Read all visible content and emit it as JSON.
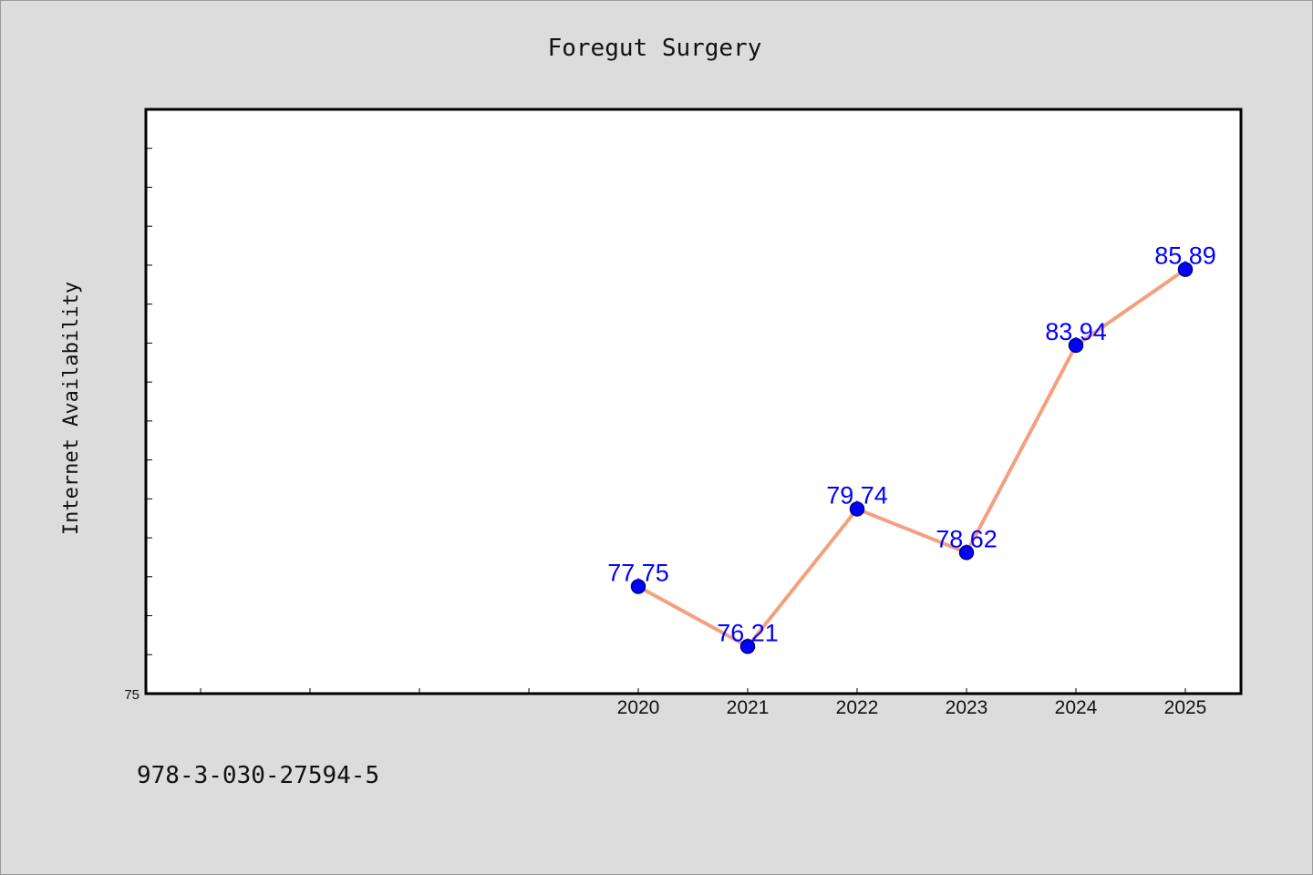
{
  "chart_data": {
    "type": "line",
    "title": "Foregut Surgery",
    "ylabel": "Internet Availability",
    "xlabel": "",
    "x": [
      "2020",
      "2021",
      "2022",
      "2023",
      "2024",
      "2025"
    ],
    "series": [
      {
        "values": [
          77.75,
          76.21,
          79.74,
          78.62,
          83.94,
          85.89
        ]
      }
    ],
    "data_labels": [
      "77.75",
      "76.21",
      "79.74",
      "78.62",
      "83.94",
      "85.89"
    ],
    "y_tick_labels": [
      "75"
    ],
    "ylim": [
      75,
      90
    ],
    "grid": false,
    "legend": "none",
    "colors": {
      "line": "#f4a07f",
      "marker": "#0000ff",
      "marker_edge": "#000080",
      "data_label": "#0000ff",
      "plot_bg": "#ffffff",
      "figure_bg": "#dcdcdc"
    }
  },
  "footer": {
    "isbn": "978-3-030-27594-5"
  }
}
